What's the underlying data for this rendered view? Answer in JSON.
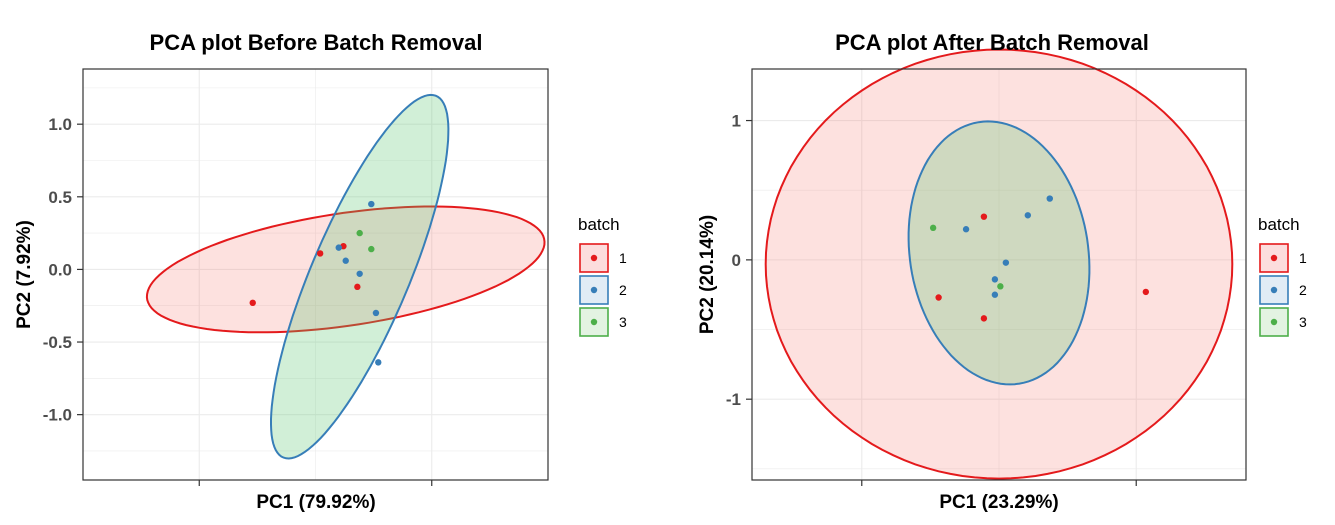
{
  "chart_data": [
    {
      "type": "scatter",
      "title": "PCA plot Before Batch Removal",
      "xlabel": "PC1 (79.92%)",
      "ylabel": "PC2 (7.92%)",
      "xlim": [
        -1.0,
        1.0
      ],
      "ylim": [
        -1.45,
        1.38
      ],
      "xticks": [
        -0.5,
        0.5
      ],
      "yticks": [
        -1.0,
        -0.5,
        0.0,
        0.5,
        1.0
      ],
      "ytick_labels": [
        "-1.0",
        "-0.5",
        "0.0",
        "0.5",
        "1.0"
      ],
      "grid": true,
      "legend": {
        "title": "batch",
        "position": "right",
        "labels": [
          "1",
          "2",
          "3"
        ]
      },
      "series": [
        {
          "name": "1",
          "color": "#E41A1C",
          "fill": "#FCDDDD",
          "points": [
            [
              -0.27,
              -0.23
            ],
            [
              0.02,
              0.11
            ],
            [
              0.12,
              0.16
            ],
            [
              0.18,
              -0.12
            ]
          ],
          "ellipse": {
            "cx": 0.13,
            "cy": 0.0,
            "rx": 0.88,
            "ry": 0.38,
            "angle_deg": 15.2
          }
        },
        {
          "name": "2",
          "color": "#377EB8",
          "fill": "#E1ECF5",
          "points": [
            [
              0.1,
              0.15
            ],
            [
              0.13,
              0.06
            ],
            [
              0.19,
              -0.03
            ],
            [
              0.24,
              0.45
            ],
            [
              0.26,
              -0.3
            ],
            [
              0.27,
              -0.64
            ]
          ],
          "ellipse": {
            "cx": 0.19,
            "cy": -0.05,
            "rx": 0.22,
            "ry": 1.29,
            "angle_deg": -14.2
          }
        },
        {
          "name": "3",
          "color": "#4DAF4A",
          "fill": "#E3F3E2",
          "points": [
            [
              0.19,
              0.25
            ],
            [
              0.24,
              0.14
            ]
          ]
        }
      ]
    },
    {
      "type": "scatter",
      "title": "PCA plot After Batch Removal",
      "xlabel": "PC1 (23.29%)",
      "ylabel": "PC2 (20.14%)",
      "xlim": [
        -1.8,
        1.8
      ],
      "ylim": [
        -1.58,
        1.37
      ],
      "xticks": [
        -1.0,
        1.0
      ],
      "yticks": [
        -1,
        0,
        1
      ],
      "ytick_labels": [
        "-1",
        "0",
        "1"
      ],
      "grid": true,
      "legend": {
        "title": "batch",
        "position": "right",
        "labels": [
          "1",
          "2",
          "3"
        ]
      },
      "series": [
        {
          "name": "1",
          "color": "#E41A1C",
          "fill": "#FCDDDD",
          "points": [
            [
              -0.11,
              0.31
            ],
            [
              -0.44,
              -0.27
            ],
            [
              -0.11,
              -0.42
            ],
            [
              1.07,
              -0.23
            ]
          ],
          "ellipse": {
            "cx": 0.0,
            "cy": -0.03,
            "rx": 1.7,
            "ry": 1.54,
            "angle_deg": 0
          }
        },
        {
          "name": "2",
          "color": "#377EB8",
          "fill": "#E1ECF5",
          "points": [
            [
              -0.24,
              0.22
            ],
            [
              -0.03,
              -0.14
            ],
            [
              -0.03,
              -0.25
            ],
            [
              0.05,
              -0.02
            ],
            [
              0.21,
              0.32
            ],
            [
              0.37,
              0.44
            ]
          ],
          "ellipse": {
            "cx": 0.0,
            "cy": 0.05,
            "rx": 0.65,
            "ry": 0.95,
            "angle_deg": 9
          }
        },
        {
          "name": "3",
          "color": "#4DAF4A",
          "fill": "#E3F3E2",
          "points": [
            [
              -0.48,
              0.23
            ],
            [
              0.01,
              -0.19
            ]
          ]
        }
      ]
    }
  ]
}
